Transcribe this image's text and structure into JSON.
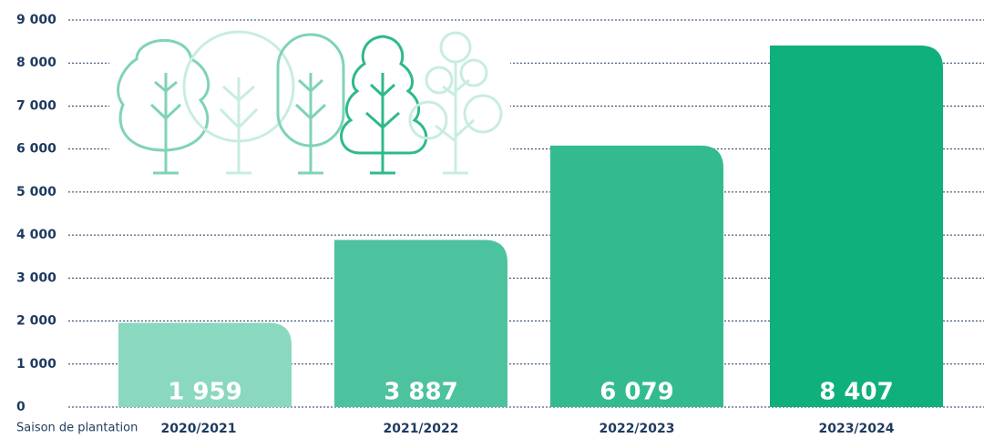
{
  "chart_data": {
    "type": "bar",
    "x_label": "Saison de plantation",
    "categories": [
      "2020/2021",
      "2021/2022",
      "2022/2023",
      "2023/2024"
    ],
    "values": [
      1959,
      3887,
      6079,
      8407
    ],
    "value_labels": [
      "1 959",
      "3 887",
      "6 079",
      "8 407"
    ],
    "colors": [
      "#8ad8bf",
      "#4dc29e",
      "#33bb8f",
      "#0fb07c"
    ],
    "ylim": [
      0,
      9000
    ],
    "yticks": [
      0,
      {
        "value": 1000,
        "label": "1 000"
      },
      {
        "value": 2000,
        "label": "2 000"
      },
      {
        "value": 3000,
        "label": "3 000"
      },
      {
        "value": 4000,
        "label": "4 000"
      },
      {
        "value": 5000,
        "label": "5 000"
      },
      {
        "value": 6000,
        "label": "6 000"
      },
      {
        "value": 7000,
        "label": "7 000"
      },
      {
        "value": 8000,
        "label": "8 000"
      },
      {
        "value": 9000,
        "label": "9 000"
      }
    ],
    "grid": true
  }
}
